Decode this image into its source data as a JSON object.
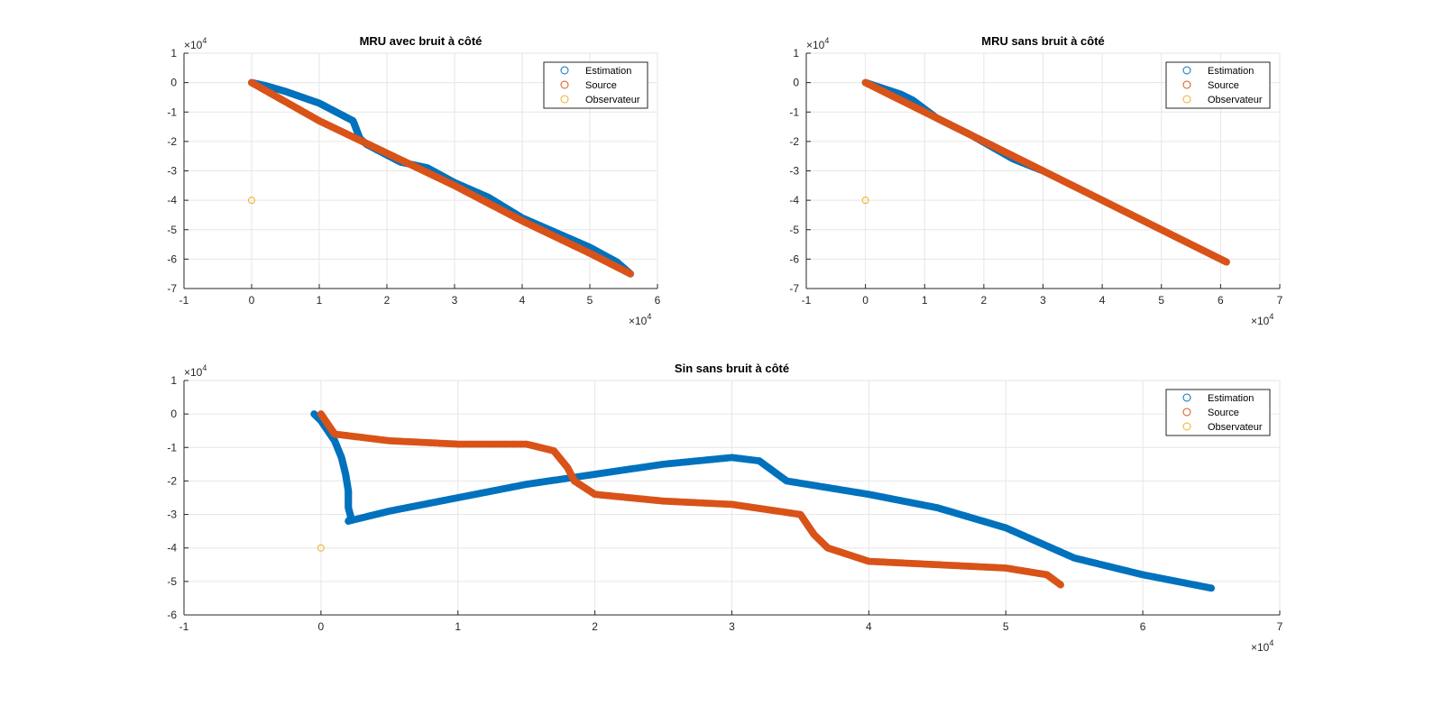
{
  "chart_data": [
    {
      "type": "scatter",
      "title": "MRU avec bruit à côté",
      "xlim": [
        -1,
        6
      ],
      "ylim": [
        -7,
        1
      ],
      "x_ticks": [
        -1,
        0,
        1,
        2,
        3,
        4,
        5,
        6
      ],
      "y_ticks": [
        -7,
        -6,
        -5,
        -4,
        -3,
        -2,
        -1,
        0,
        1
      ],
      "x_multiplier": "×10^4",
      "y_multiplier": "×10^4",
      "grid": true,
      "legend_position": "top-right",
      "legend": [
        "Estimation",
        "Source",
        "Observateur"
      ],
      "series": [
        {
          "name": "Estimation",
          "color": "#0072BD",
          "x": [
            0,
            0.2,
            0.5,
            1.0,
            1.5,
            1.6,
            1.7,
            2.2,
            2.6,
            3.0,
            3.5,
            4.0,
            4.5,
            5.0,
            5.4,
            5.6
          ],
          "y": [
            0,
            -0.1,
            -0.3,
            -0.7,
            -1.3,
            -1.9,
            -2.1,
            -2.7,
            -2.9,
            -3.4,
            -3.9,
            -4.6,
            -5.1,
            -5.6,
            -6.1,
            -6.5
          ]
        },
        {
          "name": "Source",
          "color": "#D95319",
          "x": [
            0,
            1,
            2,
            3,
            4,
            5,
            5.6
          ],
          "y": [
            0,
            -1.3,
            -2.4,
            -3.5,
            -4.7,
            -5.8,
            -6.5
          ]
        },
        {
          "name": "Observateur",
          "color": "#EDB120",
          "x": [
            0
          ],
          "y": [
            -4
          ]
        }
      ]
    },
    {
      "type": "scatter",
      "title": "MRU sans bruit à côté",
      "xlim": [
        -1,
        7
      ],
      "ylim": [
        -7,
        1
      ],
      "x_ticks": [
        -1,
        0,
        1,
        2,
        3,
        4,
        5,
        6,
        7
      ],
      "y_ticks": [
        -7,
        -6,
        -5,
        -4,
        -3,
        -2,
        -1,
        0,
        1
      ],
      "x_multiplier": "×10^4",
      "y_multiplier": "×10^4",
      "grid": true,
      "legend_position": "top-right",
      "legend": [
        "Estimation",
        "Source",
        "Observateur"
      ],
      "series": [
        {
          "name": "Estimation",
          "color": "#0072BD",
          "x": [
            0,
            0.3,
            0.6,
            0.8,
            1.2,
            1.8,
            2.5,
            3.0
          ],
          "y": [
            0,
            -0.2,
            -0.4,
            -0.6,
            -1.2,
            -1.8,
            -2.6,
            -3.0
          ]
        },
        {
          "name": "Source",
          "color": "#D95319",
          "x": [
            0,
            1,
            2,
            3,
            4,
            5,
            6.1
          ],
          "y": [
            0,
            -1.0,
            -2.0,
            -3.0,
            -4.0,
            -5.0,
            -6.1
          ]
        },
        {
          "name": "Observateur",
          "color": "#EDB120",
          "x": [
            0
          ],
          "y": [
            -4
          ]
        }
      ]
    },
    {
      "type": "scatter",
      "title": "Sin sans bruit à côté",
      "xlim": [
        -1,
        7
      ],
      "ylim": [
        -6,
        1
      ],
      "x_ticks": [
        -1,
        0,
        1,
        2,
        3,
        4,
        5,
        6,
        7
      ],
      "y_ticks": [
        -6,
        -5,
        -4,
        -3,
        -2,
        -1,
        0,
        1
      ],
      "x_multiplier": "×10^4",
      "y_multiplier": "×10^4",
      "grid": true,
      "legend_position": "top-right",
      "legend": [
        "Estimation",
        "Source",
        "Observateur"
      ],
      "series": [
        {
          "name": "Estimation",
          "color": "#0072BD",
          "x": [
            -0.05,
            0,
            0.05,
            0.1,
            0.15,
            0.18,
            0.2,
            0.2,
            0.22,
            0.2,
            0.5,
            1.0,
            1.5,
            2.0,
            2.5,
            3.0,
            3.2,
            3.4,
            4.0,
            4.5,
            5.0,
            5.5,
            6.0,
            6.5
          ],
          "y": [
            0,
            -0.2,
            -0.5,
            -0.8,
            -1.3,
            -1.8,
            -2.3,
            -2.8,
            -3.1,
            -3.2,
            -2.9,
            -2.5,
            -2.1,
            -1.8,
            -1.5,
            -1.3,
            -1.4,
            -2.0,
            -2.4,
            -2.8,
            -3.4,
            -4.3,
            -4.8,
            -5.2
          ]
        },
        {
          "name": "Source",
          "color": "#D95319",
          "x": [
            0,
            0.1,
            0.5,
            1.0,
            1.5,
            1.7,
            1.8,
            1.85,
            2.0,
            2.5,
            3.0,
            3.5,
            3.6,
            3.7,
            4.0,
            4.5,
            5.0,
            5.3,
            5.4
          ],
          "y": [
            0,
            -0.6,
            -0.8,
            -0.9,
            -0.9,
            -1.1,
            -1.6,
            -2.0,
            -2.4,
            -2.6,
            -2.7,
            -3.0,
            -3.6,
            -4.0,
            -4.4,
            -4.5,
            -4.6,
            -4.8,
            -5.1
          ]
        },
        {
          "name": "Observateur",
          "color": "#EDB120",
          "x": [
            0
          ],
          "y": [
            -4
          ]
        }
      ]
    }
  ]
}
